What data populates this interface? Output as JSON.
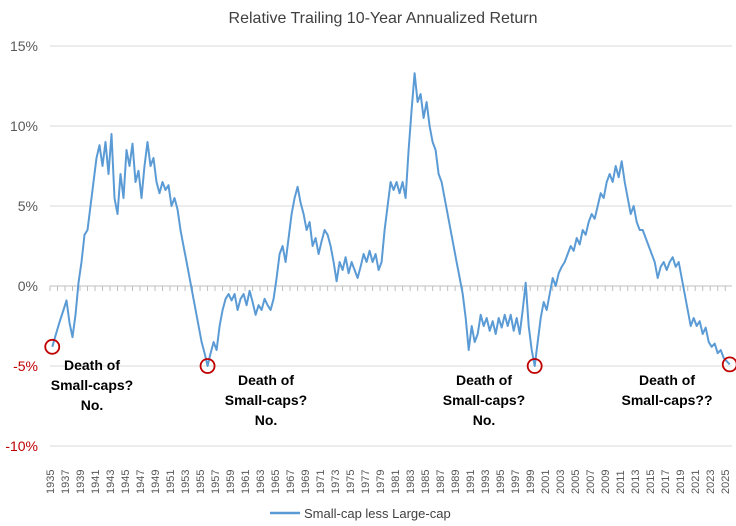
{
  "colors": {
    "series": "#5b9bd5",
    "grid": "#d9d9d9",
    "negative_tick": "#c00000",
    "tick": "#595959",
    "circle": "#c00000"
  },
  "chart_data": {
    "type": "line",
    "title": "Relative Trailing 10-Year Annualized Return",
    "xlabel": "",
    "ylabel": "",
    "xlim": [
      1935,
      2025.9
    ],
    "ylim": [
      -10,
      15
    ],
    "yticks": [
      {
        "value": 15,
        "label": "15%"
      },
      {
        "value": 10,
        "label": "10%"
      },
      {
        "value": 5,
        "label": "5%"
      },
      {
        "value": 0,
        "label": "0%"
      },
      {
        "value": -5,
        "label": "-5%"
      },
      {
        "value": -10,
        "label": "-10%"
      }
    ],
    "xticks": [
      "1935",
      "1937",
      "1939",
      "1941",
      "1943",
      "1945",
      "1947",
      "1949",
      "1951",
      "1953",
      "1955",
      "1957",
      "1959",
      "1961",
      "1963",
      "1965",
      "1967",
      "1969",
      "1971",
      "1973",
      "1975",
      "1977",
      "1979",
      "1981",
      "1983",
      "1985",
      "1987",
      "1989",
      "1991",
      "1993",
      "1995",
      "1997",
      "1999",
      "2001",
      "2003",
      "2005",
      "2007",
      "2009",
      "2011",
      "2013",
      "2015",
      "2017",
      "2019",
      "2021",
      "2023",
      "2025"
    ],
    "grid": true,
    "legend_position": "bottom",
    "series": [
      {
        "name": "Small-cap less Large-cap",
        "points": [
          [
            1935.3,
            -3.8
          ],
          [
            1935.8,
            -3.0
          ],
          [
            1936.3,
            -2.2
          ],
          [
            1936.8,
            -1.5
          ],
          [
            1937.2,
            -0.9
          ],
          [
            1937.6,
            -2.3
          ],
          [
            1938.0,
            -3.2
          ],
          [
            1938.4,
            -1.8
          ],
          [
            1938.8,
            0.2
          ],
          [
            1939.2,
            1.5
          ],
          [
            1939.6,
            3.2
          ],
          [
            1940.0,
            3.5
          ],
          [
            1940.4,
            5.0
          ],
          [
            1940.8,
            6.5
          ],
          [
            1941.2,
            8.0
          ],
          [
            1941.6,
            8.8
          ],
          [
            1942.0,
            7.5
          ],
          [
            1942.4,
            9.0
          ],
          [
            1942.8,
            7.0
          ],
          [
            1943.2,
            9.5
          ],
          [
            1943.6,
            5.5
          ],
          [
            1944.0,
            4.5
          ],
          [
            1944.4,
            7.0
          ],
          [
            1944.8,
            5.5
          ],
          [
            1945.2,
            8.5
          ],
          [
            1945.6,
            7.5
          ],
          [
            1946.0,
            8.9
          ],
          [
            1946.4,
            6.5
          ],
          [
            1946.8,
            7.2
          ],
          [
            1947.2,
            5.5
          ],
          [
            1947.6,
            7.5
          ],
          [
            1948.0,
            9.0
          ],
          [
            1948.4,
            7.5
          ],
          [
            1948.8,
            8.0
          ],
          [
            1949.2,
            6.5
          ],
          [
            1949.6,
            5.8
          ],
          [
            1950.0,
            6.5
          ],
          [
            1950.4,
            6.0
          ],
          [
            1950.8,
            6.3
          ],
          [
            1951.2,
            5.0
          ],
          [
            1951.6,
            5.5
          ],
          [
            1952.0,
            4.8
          ],
          [
            1952.4,
            3.5
          ],
          [
            1952.8,
            2.5
          ],
          [
            1953.2,
            1.5
          ],
          [
            1953.6,
            0.5
          ],
          [
            1954.0,
            -0.5
          ],
          [
            1954.4,
            -1.5
          ],
          [
            1954.8,
            -2.5
          ],
          [
            1955.2,
            -3.5
          ],
          [
            1955.6,
            -4.2
          ],
          [
            1956.0,
            -5.0
          ],
          [
            1956.4,
            -4.2
          ],
          [
            1956.8,
            -3.5
          ],
          [
            1957.2,
            -4.0
          ],
          [
            1957.6,
            -2.5
          ],
          [
            1958.0,
            -1.5
          ],
          [
            1958.4,
            -0.8
          ],
          [
            1958.8,
            -0.5
          ],
          [
            1959.2,
            -0.9
          ],
          [
            1959.6,
            -0.5
          ],
          [
            1960.0,
            -1.5
          ],
          [
            1960.4,
            -0.8
          ],
          [
            1960.8,
            -0.5
          ],
          [
            1961.2,
            -1.2
          ],
          [
            1961.6,
            -0.3
          ],
          [
            1962.0,
            -1.0
          ],
          [
            1962.4,
            -1.8
          ],
          [
            1962.8,
            -1.2
          ],
          [
            1963.2,
            -1.5
          ],
          [
            1963.6,
            -0.8
          ],
          [
            1964.0,
            -1.2
          ],
          [
            1964.4,
            -1.5
          ],
          [
            1964.8,
            -0.8
          ],
          [
            1965.2,
            0.5
          ],
          [
            1965.6,
            2.0
          ],
          [
            1966.0,
            2.5
          ],
          [
            1966.4,
            1.5
          ],
          [
            1966.8,
            3.0
          ],
          [
            1967.2,
            4.5
          ],
          [
            1967.6,
            5.5
          ],
          [
            1968.0,
            6.2
          ],
          [
            1968.4,
            5.2
          ],
          [
            1968.8,
            4.5
          ],
          [
            1969.2,
            3.5
          ],
          [
            1969.6,
            4.0
          ],
          [
            1970.0,
            2.5
          ],
          [
            1970.4,
            3.0
          ],
          [
            1970.8,
            2.0
          ],
          [
            1971.2,
            2.8
          ],
          [
            1971.6,
            3.5
          ],
          [
            1972.0,
            3.2
          ],
          [
            1972.4,
            2.5
          ],
          [
            1972.8,
            1.5
          ],
          [
            1973.2,
            0.3
          ],
          [
            1973.6,
            1.5
          ],
          [
            1974.0,
            1.0
          ],
          [
            1974.4,
            1.8
          ],
          [
            1974.8,
            0.8
          ],
          [
            1975.2,
            1.5
          ],
          [
            1975.6,
            1.0
          ],
          [
            1976.0,
            0.5
          ],
          [
            1976.4,
            1.2
          ],
          [
            1976.8,
            2.0
          ],
          [
            1977.2,
            1.5
          ],
          [
            1977.6,
            2.2
          ],
          [
            1978.0,
            1.5
          ],
          [
            1978.4,
            2.0
          ],
          [
            1978.8,
            1.0
          ],
          [
            1979.2,
            1.5
          ],
          [
            1979.6,
            3.5
          ],
          [
            1980.0,
            5.0
          ],
          [
            1980.4,
            6.5
          ],
          [
            1980.8,
            6.0
          ],
          [
            1981.2,
            6.5
          ],
          [
            1981.6,
            5.8
          ],
          [
            1982.0,
            6.5
          ],
          [
            1982.4,
            5.5
          ],
          [
            1982.8,
            8.5
          ],
          [
            1983.2,
            11.0
          ],
          [
            1983.6,
            13.3
          ],
          [
            1984.0,
            11.5
          ],
          [
            1984.4,
            12.0
          ],
          [
            1984.8,
            10.5
          ],
          [
            1985.2,
            11.5
          ],
          [
            1985.6,
            10.0
          ],
          [
            1986.0,
            9.0
          ],
          [
            1986.4,
            8.5
          ],
          [
            1986.8,
            7.0
          ],
          [
            1987.2,
            6.5
          ],
          [
            1987.6,
            5.5
          ],
          [
            1988.0,
            4.5
          ],
          [
            1988.4,
            3.5
          ],
          [
            1988.8,
            2.5
          ],
          [
            1989.2,
            1.5
          ],
          [
            1989.6,
            0.5
          ],
          [
            1990.0,
            -0.5
          ],
          [
            1990.4,
            -2.0
          ],
          [
            1990.8,
            -4.0
          ],
          [
            1991.2,
            -2.5
          ],
          [
            1991.6,
            -3.5
          ],
          [
            1992.0,
            -3.0
          ],
          [
            1992.4,
            -1.8
          ],
          [
            1992.8,
            -2.5
          ],
          [
            1993.2,
            -2.0
          ],
          [
            1993.6,
            -2.8
          ],
          [
            1994.0,
            -2.2
          ],
          [
            1994.4,
            -3.0
          ],
          [
            1994.8,
            -2.0
          ],
          [
            1995.2,
            -2.6
          ],
          [
            1995.6,
            -1.8
          ],
          [
            1996.0,
            -2.5
          ],
          [
            1996.4,
            -1.8
          ],
          [
            1996.8,
            -2.8
          ],
          [
            1997.2,
            -2.0
          ],
          [
            1997.6,
            -3.0
          ],
          [
            1998.0,
            -1.5
          ],
          [
            1998.4,
            0.2
          ],
          [
            1998.8,
            -2.5
          ],
          [
            1999.2,
            -4.0
          ],
          [
            1999.6,
            -5.0
          ],
          [
            2000.0,
            -3.5
          ],
          [
            2000.4,
            -2.0
          ],
          [
            2000.8,
            -1.0
          ],
          [
            2001.2,
            -1.5
          ],
          [
            2001.6,
            -0.5
          ],
          [
            2002.0,
            0.5
          ],
          [
            2002.4,
            0.0
          ],
          [
            2002.8,
            0.8
          ],
          [
            2003.2,
            1.2
          ],
          [
            2003.6,
            1.5
          ],
          [
            2004.0,
            2.0
          ],
          [
            2004.4,
            2.5
          ],
          [
            2004.8,
            2.2
          ],
          [
            2005.2,
            3.0
          ],
          [
            2005.6,
            2.6
          ],
          [
            2006.0,
            3.5
          ],
          [
            2006.4,
            3.2
          ],
          [
            2006.8,
            4.0
          ],
          [
            2007.2,
            4.5
          ],
          [
            2007.6,
            4.2
          ],
          [
            2008.0,
            5.0
          ],
          [
            2008.4,
            5.8
          ],
          [
            2008.8,
            5.5
          ],
          [
            2009.2,
            6.5
          ],
          [
            2009.6,
            7.0
          ],
          [
            2010.0,
            6.5
          ],
          [
            2010.4,
            7.5
          ],
          [
            2010.8,
            6.8
          ],
          [
            2011.2,
            7.8
          ],
          [
            2011.6,
            6.5
          ],
          [
            2012.0,
            5.5
          ],
          [
            2012.4,
            4.5
          ],
          [
            2012.8,
            5.0
          ],
          [
            2013.2,
            4.0
          ],
          [
            2013.6,
            3.5
          ],
          [
            2014.0,
            3.5
          ],
          [
            2014.4,
            3.0
          ],
          [
            2014.8,
            2.5
          ],
          [
            2015.2,
            2.0
          ],
          [
            2015.6,
            1.5
          ],
          [
            2016.0,
            0.5
          ],
          [
            2016.4,
            1.2
          ],
          [
            2016.8,
            1.5
          ],
          [
            2017.2,
            1.0
          ],
          [
            2017.6,
            1.5
          ],
          [
            2018.0,
            1.8
          ],
          [
            2018.4,
            1.2
          ],
          [
            2018.8,
            1.5
          ],
          [
            2019.2,
            0.5
          ],
          [
            2019.6,
            -0.5
          ],
          [
            2020.0,
            -1.5
          ],
          [
            2020.4,
            -2.5
          ],
          [
            2020.8,
            -2.0
          ],
          [
            2021.2,
            -2.5
          ],
          [
            2021.6,
            -2.2
          ],
          [
            2022.0,
            -3.0
          ],
          [
            2022.4,
            -2.6
          ],
          [
            2022.8,
            -3.5
          ],
          [
            2023.2,
            -3.8
          ],
          [
            2023.6,
            -3.6
          ],
          [
            2024.0,
            -4.2
          ],
          [
            2024.4,
            -4.0
          ],
          [
            2024.8,
            -4.5
          ],
          [
            2025.2,
            -4.7
          ],
          [
            2025.6,
            -4.9
          ]
        ]
      }
    ],
    "highlights": [
      {
        "x": 1935.3,
        "y": -3.8
      },
      {
        "x": 1956.0,
        "y": -5.0
      },
      {
        "x": 1999.6,
        "y": -5.0
      },
      {
        "x": 2025.6,
        "y": -4.9
      }
    ],
    "annotations": [
      {
        "lines": [
          "Death of",
          "Small-caps?",
          "No."
        ]
      },
      {
        "lines": [
          "Death of",
          "Small-caps?",
          "No."
        ]
      },
      {
        "lines": [
          "Death of",
          "Small-caps?",
          "No."
        ]
      },
      {
        "lines": [
          "Death of",
          "Small-caps??"
        ]
      }
    ]
  }
}
